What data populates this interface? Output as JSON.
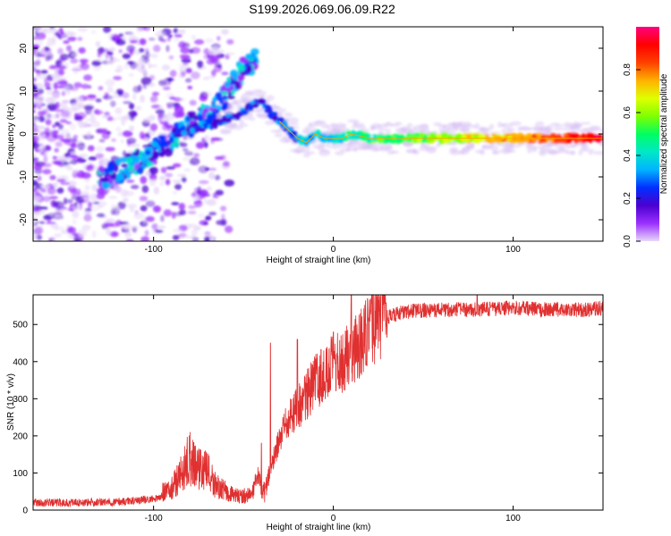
{
  "title": "S199.2026.069.06.09.R22",
  "chart_data": [
    {
      "type": "heatmap",
      "xlabel": "Height of straight line (km)",
      "ylabel": "Frequency (Hz)",
      "xlim": [
        -167,
        150
      ],
      "ylim": [
        -25,
        25
      ],
      "x_ticks": [
        -100,
        0,
        100
      ],
      "y_ticks": [
        -20,
        -10,
        0,
        10,
        20
      ],
      "colorbar": {
        "label": "Normalized spectral amplitude",
        "range": [
          0,
          1
        ],
        "ticks": [
          0.0,
          0.2,
          0.4,
          0.6,
          0.8
        ],
        "colors": [
          "#e8d8f8",
          "#9b30ff",
          "#4a00d0",
          "#0030ff",
          "#00b4ff",
          "#00e8c8",
          "#00ff60",
          "#80ff00",
          "#e0ff00",
          "#ffb000",
          "#ff4000",
          "#ff0000",
          "#ff0080"
        ]
      },
      "ridge_center_hz": [
        [
          -128,
          -10
        ],
        [
          -110,
          -7
        ],
        [
          -95,
          -3
        ],
        [
          -80,
          2
        ],
        [
          -65,
          6
        ],
        [
          -55,
          12
        ],
        [
          -50,
          15
        ],
        [
          -43,
          17
        ]
      ],
      "main_trace_hz": [
        [
          -90,
          0
        ],
        [
          -70,
          2
        ],
        [
          -55,
          4
        ],
        [
          -45,
          7
        ],
        [
          -40,
          8
        ],
        [
          -35,
          5
        ],
        [
          -30,
          3
        ],
        [
          -25,
          1
        ],
        [
          -20,
          -1
        ],
        [
          -15,
          -2
        ],
        [
          -10,
          0
        ],
        [
          -5,
          -1
        ],
        [
          0,
          -1
        ],
        [
          5,
          -1
        ],
        [
          10,
          0
        ],
        [
          20,
          -1
        ],
        [
          40,
          -1
        ],
        [
          60,
          -1
        ],
        [
          80,
          -1
        ],
        [
          100,
          -1
        ],
        [
          120,
          -1
        ],
        [
          140,
          -1
        ],
        [
          150,
          -1
        ]
      ]
    },
    {
      "type": "line",
      "xlabel": "Height of straight line (km)",
      "ylabel": "SNR (10 * v/v)",
      "xlim": [
        -167,
        150
      ],
      "ylim": [
        0,
        580
      ],
      "x_ticks": [
        -100,
        0,
        100
      ],
      "y_ticks": [
        0,
        100,
        200,
        300,
        400,
        500
      ],
      "color": "#e03030",
      "envelope": [
        [
          -167,
          20
        ],
        [
          -140,
          20
        ],
        [
          -120,
          22
        ],
        [
          -100,
          30
        ],
        [
          -90,
          45
        ],
        [
          -85,
          75
        ],
        [
          -80,
          110
        ],
        [
          -75,
          90
        ],
        [
          -70,
          80
        ],
        [
          -65,
          50
        ],
        [
          -60,
          40
        ],
        [
          -55,
          30
        ],
        [
          -50,
          30
        ],
        [
          -45,
          35
        ],
        [
          -42,
          90
        ],
        [
          -40,
          60
        ],
        [
          -38,
          45
        ],
        [
          -35,
          110
        ],
        [
          -30,
          180
        ],
        [
          -25,
          240
        ],
        [
          -20,
          270
        ],
        [
          -15,
          300
        ],
        [
          -10,
          340
        ],
        [
          -5,
          360
        ],
        [
          0,
          380
        ],
        [
          5,
          390
        ],
        [
          10,
          420
        ],
        [
          15,
          440
        ],
        [
          20,
          470
        ],
        [
          25,
          500
        ],
        [
          30,
          520
        ],
        [
          40,
          535
        ],
        [
          60,
          540
        ],
        [
          80,
          540
        ],
        [
          100,
          545
        ],
        [
          120,
          540
        ],
        [
          140,
          540
        ],
        [
          150,
          545
        ]
      ],
      "peaks": [
        [
          -80,
          200
        ],
        [
          -40,
          180
        ],
        [
          -35,
          450
        ],
        [
          -20,
          460
        ],
        [
          0,
          480
        ],
        [
          10,
          580
        ],
        [
          80,
          580
        ]
      ]
    }
  ]
}
